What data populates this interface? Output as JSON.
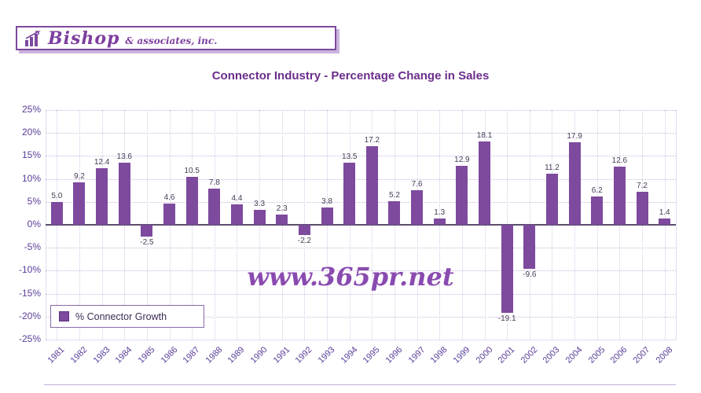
{
  "logo": {
    "brand": "Bishop",
    "suffix": "& associates, inc.",
    "icon": "bar-chart-icon"
  },
  "header": {
    "title": "Connector Industry - Percentage Change in Sales"
  },
  "legend": {
    "label": "% Connector Growth"
  },
  "watermark": "www.365pr.net",
  "colors": {
    "bar": "#7d4a9e",
    "accent": "#6b2d8b",
    "axis_text": "#5b3d99",
    "grid_h": "#c9b8dc",
    "grid_v": "#d6c8e6",
    "zero_axis": "#5a4e6b",
    "value_label": "#443d55",
    "watermark": "#8a4bb0"
  },
  "chart_data": {
    "type": "bar",
    "title": "Connector Industry - Percentage Change in Sales",
    "categories": [
      "1981",
      "1982",
      "1983",
      "1984",
      "1985",
      "1986",
      "1987",
      "1988",
      "1989",
      "1990",
      "1991",
      "1992",
      "1993",
      "1994",
      "1995",
      "1996",
      "1997",
      "1998",
      "1999",
      "2000",
      "2001",
      "2002",
      "2003",
      "2004",
      "2005",
      "2006",
      "2007",
      "2008"
    ],
    "values": [
      5.0,
      9.2,
      12.4,
      13.6,
      -2.5,
      4.6,
      10.5,
      7.8,
      4.4,
      3.3,
      2.3,
      -2.2,
      3.8,
      13.5,
      17.2,
      5.2,
      7.6,
      1.3,
      12.9,
      18.1,
      -19.1,
      -9.6,
      11.2,
      17.9,
      6.2,
      12.6,
      7.2,
      1.4
    ],
    "xlabel": "",
    "ylabel": "",
    "ylim": [
      -25,
      25
    ],
    "ytick_step": 5,
    "ytick_suffix": "%",
    "grid": true,
    "legend_position": "bottom-left",
    "legend_entries": [
      "% Connector Growth"
    ]
  }
}
